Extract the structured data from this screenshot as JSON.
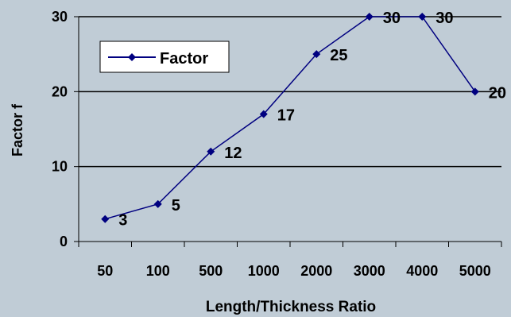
{
  "chart_data": {
    "type": "line",
    "categories": [
      "50",
      "100",
      "500",
      "1000",
      "2000",
      "3000",
      "4000",
      "5000"
    ],
    "series": [
      {
        "name": "Factor",
        "values": [
          3,
          5,
          12,
          17,
          25,
          30,
          30,
          20
        ]
      }
    ],
    "data_labels": [
      "3",
      "5",
      "12",
      "17",
      "25",
      "30",
      "30",
      "20"
    ],
    "xlabel": "Length/Thickness Ratio",
    "ylabel": "Factor f",
    "ylim": [
      0,
      30
    ],
    "yticks": [
      "0",
      "10",
      "20",
      "30"
    ],
    "grid": "horizontal",
    "legend_position": "top-left",
    "colors": {
      "background": "#c0ccd6",
      "series": "#000080",
      "gridline": "#000000",
      "text": "#000000"
    }
  }
}
